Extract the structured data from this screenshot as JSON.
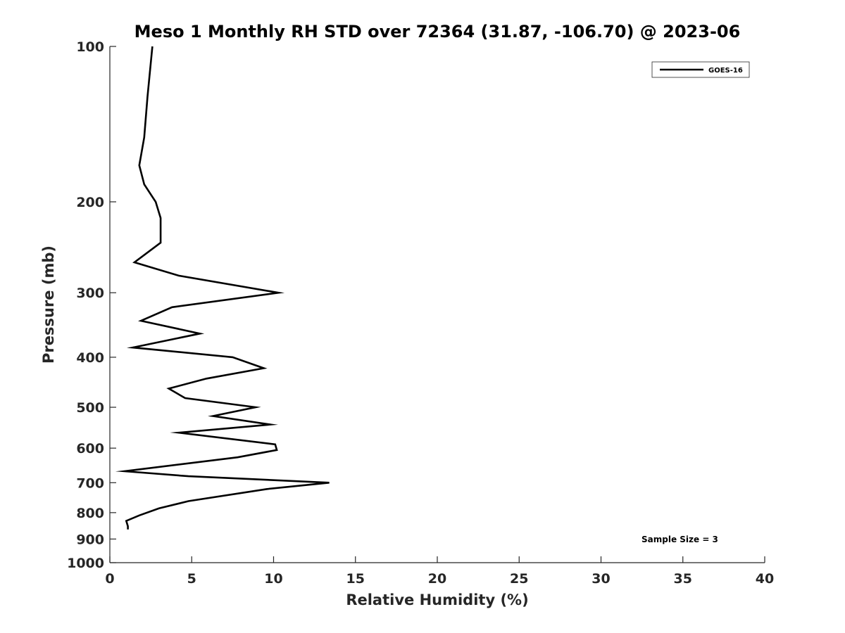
{
  "chart_data": {
    "type": "line",
    "title": "Meso 1 Monthly RH STD over 72364 (31.87, -106.70) @ 2023-06",
    "xlabel": "Relative Humidity (%)",
    "ylabel": "Pressure (mb)",
    "xlim": [
      0,
      40
    ],
    "ylim": [
      100,
      1000
    ],
    "y_scale": "log",
    "y_reversed": true,
    "x_ticks": [
      "0",
      "5",
      "10",
      "15",
      "20",
      "25",
      "30",
      "35",
      "40"
    ],
    "y_ticks": [
      "100",
      "200",
      "300",
      "400",
      "500",
      "600",
      "700",
      "800",
      "900",
      "1000"
    ],
    "grid": false,
    "legend_position": "top-right",
    "annotation": "Sample Size = 3",
    "series": [
      {
        "name": "GOES-16",
        "color": "#000000",
        "points": [
          {
            "x": 2.6,
            "y": 100
          },
          {
            "x": 2.3,
            "y": 125
          },
          {
            "x": 2.1,
            "y": 150
          },
          {
            "x": 1.8,
            "y": 170
          },
          {
            "x": 2.1,
            "y": 185
          },
          {
            "x": 2.8,
            "y": 200
          },
          {
            "x": 3.1,
            "y": 215
          },
          {
            "x": 3.1,
            "y": 240
          },
          {
            "x": 1.5,
            "y": 262
          },
          {
            "x": 4.2,
            "y": 278
          },
          {
            "x": 10.3,
            "y": 300
          },
          {
            "x": 3.8,
            "y": 320
          },
          {
            "x": 1.9,
            "y": 340
          },
          {
            "x": 5.5,
            "y": 360
          },
          {
            "x": 1.4,
            "y": 383
          },
          {
            "x": 7.5,
            "y": 400
          },
          {
            "x": 9.4,
            "y": 420
          },
          {
            "x": 5.9,
            "y": 440
          },
          {
            "x": 3.6,
            "y": 460
          },
          {
            "x": 4.6,
            "y": 480
          },
          {
            "x": 8.9,
            "y": 500
          },
          {
            "x": 6.3,
            "y": 520
          },
          {
            "x": 9.8,
            "y": 540
          },
          {
            "x": 4.2,
            "y": 560
          },
          {
            "x": 10.1,
            "y": 590
          },
          {
            "x": 10.2,
            "y": 605
          },
          {
            "x": 7.8,
            "y": 625
          },
          {
            "x": 0.9,
            "y": 665
          },
          {
            "x": 4.8,
            "y": 680
          },
          {
            "x": 13.4,
            "y": 700
          },
          {
            "x": 9.6,
            "y": 720
          },
          {
            "x": 4.8,
            "y": 760
          },
          {
            "x": 3.0,
            "y": 785
          },
          {
            "x": 1.8,
            "y": 810
          },
          {
            "x": 1.0,
            "y": 830
          },
          {
            "x": 1.1,
            "y": 850
          },
          {
            "x": 1.1,
            "y": 862
          }
        ]
      }
    ]
  }
}
